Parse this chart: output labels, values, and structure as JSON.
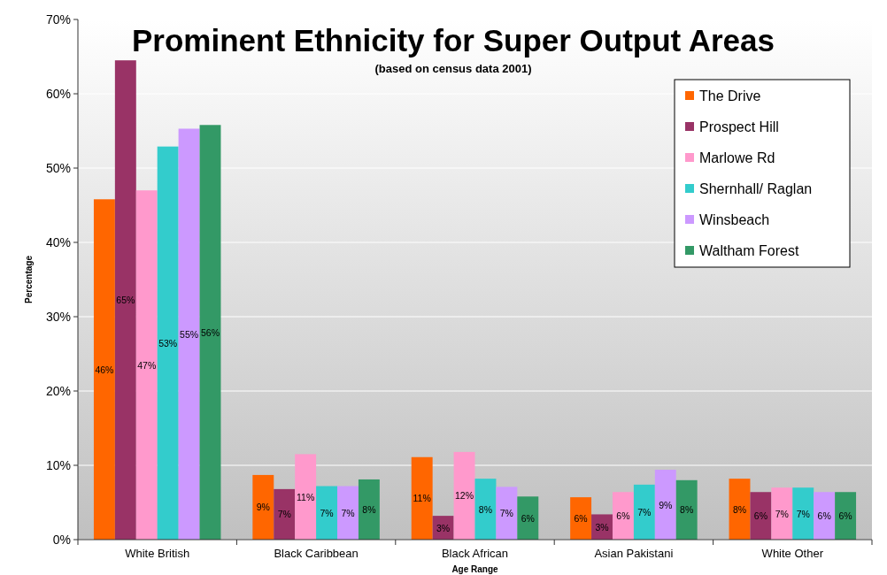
{
  "chart_data": {
    "type": "bar",
    "title": "Prominent Ethnicity for Super Output Areas",
    "subtitle": "(based on census data 2001)",
    "xlabel": "Age Range",
    "ylabel": "Percentage",
    "categories": [
      "White British",
      "Black Caribbean",
      "Black African",
      "Asian Pakistani",
      "White Other"
    ],
    "series": [
      {
        "name": "The Drive",
        "color": "#ff6600",
        "values": [
          45.8,
          8.7,
          11.1,
          5.7,
          8.2
        ],
        "value_labels": [
          "46%",
          "9%",
          "11%",
          "6%",
          "8%"
        ]
      },
      {
        "name": "Prospect Hill",
        "color": "#993366",
        "values": [
          64.5,
          6.8,
          3.2,
          3.4,
          6.4
        ],
        "value_labels": [
          "65%",
          "7%",
          "3%",
          "3%",
          "6%"
        ]
      },
      {
        "name": "Marlowe Rd",
        "color": "#ff99cc",
        "values": [
          47,
          11.5,
          11.8,
          6.4,
          7
        ],
        "value_labels": [
          "47%",
          "11%",
          "12%",
          "6%",
          "7%"
        ]
      },
      {
        "name": "Shernhall/ Raglan",
        "color": "#33cccc",
        "values": [
          52.9,
          7.2,
          8.2,
          7.4,
          7
        ],
        "value_labels": [
          "53%",
          "7%",
          "8%",
          "7%",
          "7%"
        ]
      },
      {
        "name": "Winsbeach",
        "color": "#cc99ff",
        "values": [
          55.3,
          7.2,
          7.1,
          9.4,
          6.4
        ],
        "value_labels": [
          "55%",
          "7%",
          "7%",
          "9%",
          "6%"
        ]
      },
      {
        "name": "Waltham Forest",
        "color": "#339966",
        "values": [
          55.8,
          8.1,
          5.8,
          8,
          6.4
        ],
        "value_labels": [
          "56%",
          "8%",
          "6%",
          "8%",
          "6%"
        ]
      }
    ],
    "ylim": [
      0,
      70
    ],
    "yticks": [
      {
        "value": 0,
        "label": "0%"
      },
      {
        "value": 10,
        "label": "10%"
      },
      {
        "value": 20,
        "label": "20%"
      },
      {
        "value": 30,
        "label": "30%"
      },
      {
        "value": 40,
        "label": "40%"
      },
      {
        "value": 50,
        "label": "50%"
      },
      {
        "value": 60,
        "label": "60%"
      },
      {
        "value": 70,
        "label": "70%"
      }
    ],
    "grid": "y",
    "legend": "top right"
  }
}
